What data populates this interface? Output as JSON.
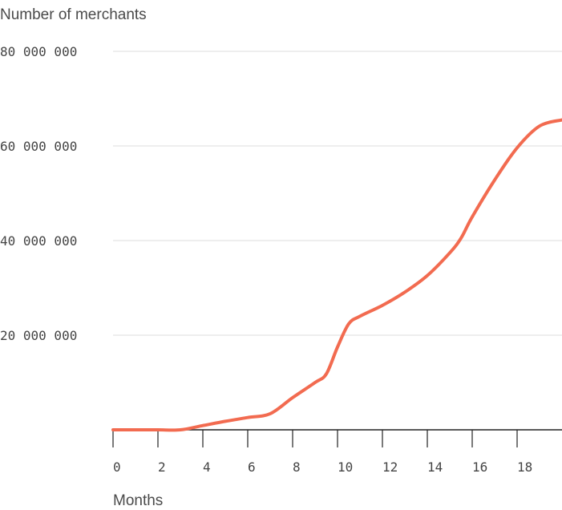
{
  "chart_data": {
    "type": "line",
    "title": "",
    "ylabel": "Number of merchants",
    "xlabel": "Months",
    "xlim": [
      0,
      20
    ],
    "ylim": [
      0,
      80000000
    ],
    "grid": true,
    "x_ticks": [
      0,
      2,
      4,
      6,
      8,
      10,
      12,
      14,
      16,
      18
    ],
    "x_tick_labels": [
      "0",
      "2",
      "4",
      "6",
      "8",
      "10",
      "12",
      "14",
      "16",
      "18"
    ],
    "y_ticks": [
      20000000,
      40000000,
      60000000,
      80000000
    ],
    "y_tick_labels": [
      "20 000 000",
      "40 000 000",
      "60 000 000",
      "80 000 000"
    ],
    "series": [
      {
        "color": "#f26b50",
        "x": [
          0,
          1,
          2,
          3,
          4,
          5,
          6,
          7,
          8,
          9,
          9.5,
          10,
          10.5,
          11,
          12,
          13,
          14,
          15,
          15.5,
          16,
          17,
          18,
          19,
          20
        ],
        "y": [
          0,
          0,
          0,
          0,
          900000,
          1800000,
          2600000,
          3400000,
          6800000,
          10000000,
          11800000,
          17500000,
          22400000,
          24000000,
          26300000,
          29100000,
          32600000,
          37400000,
          40500000,
          45000000,
          52800000,
          59600000,
          64200000,
          65500000
        ]
      }
    ]
  }
}
